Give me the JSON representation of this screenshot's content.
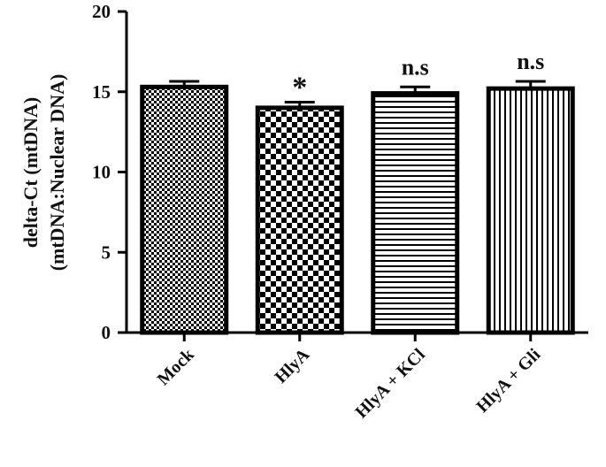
{
  "chart_data": {
    "type": "bar",
    "title": "",
    "xlabel": "",
    "ylabel_line1": "delta-Ct (mtDNA)",
    "ylabel_line2": "(mtDNA:Nuclear DNA)",
    "categories": [
      "Mock",
      "HlyA",
      "HlyA + KCl",
      "HlyA + Gli"
    ],
    "values": [
      15.3,
      14.0,
      14.9,
      15.2
    ],
    "errors": [
      0.35,
      0.35,
      0.4,
      0.45
    ],
    "annotations": [
      "",
      "*",
      "n.s",
      "n.s"
    ],
    "patterns": [
      "fine-checker",
      "coarse-checker",
      "horizontal-lines",
      "vertical-lines"
    ],
    "ylim": [
      0,
      20
    ],
    "yticks": [
      0,
      5,
      10,
      15,
      20
    ],
    "grid": false,
    "colors": {
      "bar_stroke": "#000000",
      "fill": "#000000",
      "background": "#ffffff"
    }
  }
}
